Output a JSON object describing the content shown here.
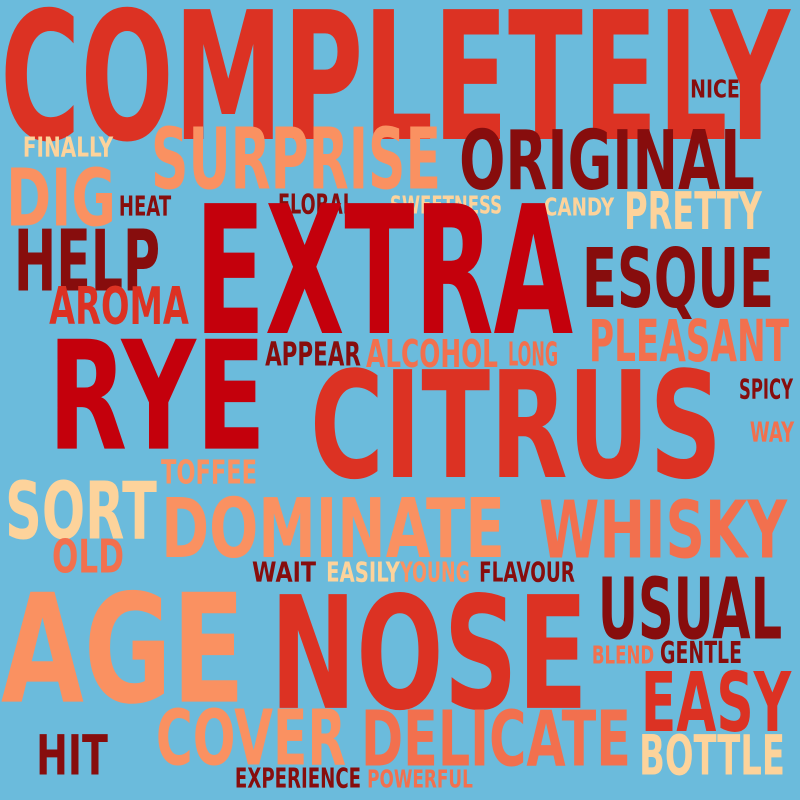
{
  "background": "#6bbbdc",
  "palette": {
    "dark": "#870d0d",
    "red": "#c4000c",
    "orange_red": "#dc3223",
    "salmon": "#f2704e",
    "peach": "#fa9161",
    "cream": "#fdd39b"
  },
  "words": [
    {
      "text": "COMPLETELY",
      "color": "orange_red"
    },
    {
      "text": "NICE",
      "color": "dark"
    },
    {
      "text": "FINALLY",
      "color": "cream"
    },
    {
      "text": "SURPRISE",
      "color": "peach"
    },
    {
      "text": "ORIGINAL",
      "color": "dark"
    },
    {
      "text": "DIG",
      "color": "peach"
    },
    {
      "text": "HEAT",
      "color": "dark"
    },
    {
      "text": "FLORAL",
      "color": "dark"
    },
    {
      "text": "SWEETNESS",
      "color": "cream"
    },
    {
      "text": "CANDY",
      "color": "cream"
    },
    {
      "text": "PRETTY",
      "color": "cream"
    },
    {
      "text": "HELP",
      "color": "dark"
    },
    {
      "text": "EXTRA",
      "color": "red"
    },
    {
      "text": "ESQUE",
      "color": "dark"
    },
    {
      "text": "AROMA",
      "color": "orange_red"
    },
    {
      "text": "APPEAR",
      "color": "dark"
    },
    {
      "text": "ALCOHOL",
      "color": "salmon"
    },
    {
      "text": "LONG",
      "color": "salmon"
    },
    {
      "text": "PLEASANT",
      "color": "salmon"
    },
    {
      "text": "RYE",
      "color": "red"
    },
    {
      "text": "CITRUS",
      "color": "orange_red"
    },
    {
      "text": "SPICY",
      "color": "dark"
    },
    {
      "text": "WAY",
      "color": "salmon"
    },
    {
      "text": "TOFFEE",
      "color": "peach"
    },
    {
      "text": "SORT",
      "color": "cream"
    },
    {
      "text": "DOMINATE",
      "color": "peach"
    },
    {
      "text": "WHISKY",
      "color": "salmon"
    },
    {
      "text": "OLD",
      "color": "salmon"
    },
    {
      "text": "WAIT",
      "color": "dark"
    },
    {
      "text": "EASILY",
      "color": "cream"
    },
    {
      "text": "YOUNG",
      "color": "peach"
    },
    {
      "text": "FLAVOUR",
      "color": "dark"
    },
    {
      "text": "AGE",
      "color": "peach"
    },
    {
      "text": "NOSE",
      "color": "orange_red"
    },
    {
      "text": "USUAL",
      "color": "dark"
    },
    {
      "text": "BLEND",
      "color": "salmon"
    },
    {
      "text": "GENTLE",
      "color": "dark"
    },
    {
      "text": "EASY",
      "color": "orange_red"
    },
    {
      "text": "COVER",
      "color": "peach"
    },
    {
      "text": "DELICATE",
      "color": "salmon"
    },
    {
      "text": "HIT",
      "color": "dark"
    },
    {
      "text": "BOTTLE",
      "color": "cream"
    },
    {
      "text": "EXPERIENCE",
      "color": "dark"
    },
    {
      "text": "POWERFUL",
      "color": "salmon"
    }
  ]
}
